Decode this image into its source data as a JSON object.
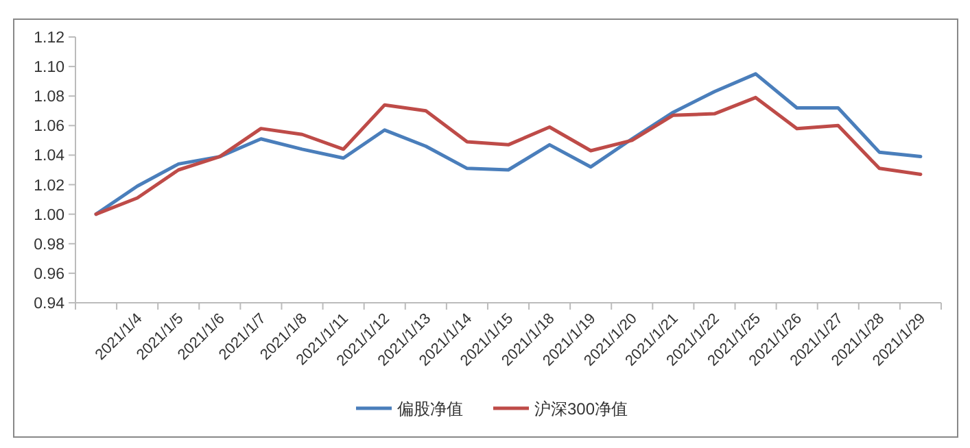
{
  "chart_data": {
    "type": "line",
    "categories": [
      null,
      "2021/1/4",
      "2021/1/5",
      "2021/1/6",
      "2021/1/7",
      "2021/1/8",
      "2021/1/11",
      "2021/1/12",
      "2021/1/13",
      "2021/1/14",
      "2021/1/15",
      "2021/1/18",
      "2021/1/19",
      "2021/1/20",
      "2021/1/21",
      "2021/1/22",
      "2021/1/25",
      "2021/1/26",
      "2021/1/27",
      "2021/1/28",
      "2021/1/29"
    ],
    "series": [
      {
        "name": "偏股净值",
        "color": "#4a7ebb",
        "values": [
          1.0,
          1.019,
          1.034,
          1.039,
          1.051,
          1.044,
          1.038,
          1.057,
          1.046,
          1.031,
          1.03,
          1.047,
          1.032,
          1.051,
          1.069,
          1.083,
          1.095,
          1.072,
          1.072,
          1.042,
          1.039
        ]
      },
      {
        "name": "沪深300净值",
        "color": "#be4b48",
        "values": [
          1.0,
          1.011,
          1.03,
          1.039,
          1.058,
          1.054,
          1.044,
          1.074,
          1.07,
          1.049,
          1.047,
          1.059,
          1.043,
          1.05,
          1.067,
          1.068,
          1.079,
          1.058,
          1.06,
          1.031,
          1.027
        ]
      }
    ],
    "ylim": [
      0.94,
      1.12
    ],
    "yticks": [
      {
        "value": 0.94,
        "label": "0.94"
      },
      {
        "value": 0.96,
        "label": "0.96"
      },
      {
        "value": 0.98,
        "label": "0.98"
      },
      {
        "value": 1.0,
        "label": "1.00"
      },
      {
        "value": 1.02,
        "label": "1.02"
      },
      {
        "value": 1.04,
        "label": "1.04"
      },
      {
        "value": 1.06,
        "label": "1.06"
      },
      {
        "value": 1.08,
        "label": "1.08"
      },
      {
        "value": 1.1,
        "label": "1.10"
      },
      {
        "value": 1.12,
        "label": "1.12"
      }
    ],
    "grid": false,
    "legend": "bottom",
    "marker": "none",
    "line_style": "solid"
  }
}
